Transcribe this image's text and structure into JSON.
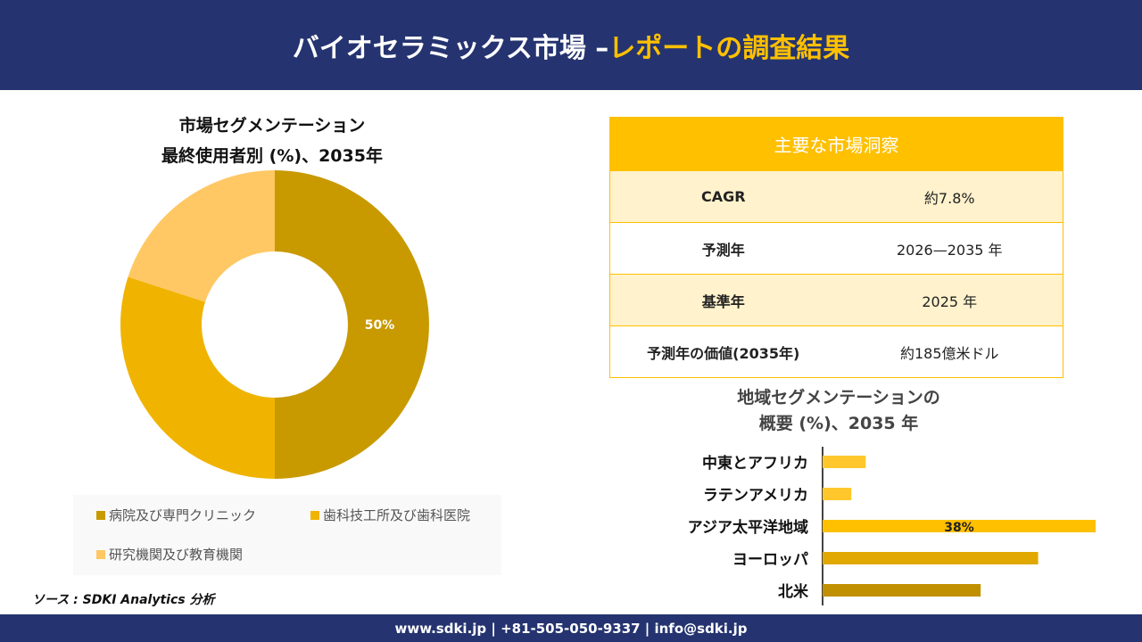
{
  "header": {
    "title_main": "バイオセラミックス市場 –",
    "title_highlight": "レポートの調査結果"
  },
  "footer": {
    "text": "www.sdki.jp | +81-505-050-9337 | info@sdki.jp"
  },
  "source": "ソース : SDKI Analytics 分析",
  "insights": {
    "title": "主要な市場洞察",
    "rows": [
      {
        "key": "CAGR",
        "value": "約7.8%"
      },
      {
        "key": "予測年",
        "value": "2026—2035 年"
      },
      {
        "key": "基準年",
        "value": "2025 年"
      },
      {
        "key": "予測年の価値(2035年)",
        "value": "約185億米ドル"
      }
    ]
  },
  "chart_data": [
    {
      "type": "pie",
      "donut": true,
      "title": "市場セグメンテーション",
      "subtitle": "最終使用者別 (%)、2035年",
      "categories": [
        "病院及び専門クリニック",
        "歯科技工所及び歯科医院",
        "研究機関及び教育機関"
      ],
      "values": [
        50,
        30,
        20
      ],
      "data_labels": [
        "50%",
        "",
        ""
      ],
      "colors": [
        "#C89A00",
        "#F0B400",
        "#FFC864"
      ],
      "legend": "bottom"
    },
    {
      "type": "bar",
      "orientation": "horizontal",
      "title": "地域セグメンテーションの",
      "subtitle": "概要 (%)、2035 年",
      "categories": [
        "中東とアフリカ",
        "ラテンアメリカ",
        "アジア太平洋地域",
        "ヨーロッパ",
        "北米"
      ],
      "values": [
        6,
        4,
        38,
        30,
        22
      ],
      "data_labels": [
        "",
        "",
        "38%",
        "",
        ""
      ],
      "colors": [
        "#FFC72C",
        "#FFC72C",
        "#FFC000",
        "#E0A800",
        "#C09000"
      ]
    }
  ]
}
